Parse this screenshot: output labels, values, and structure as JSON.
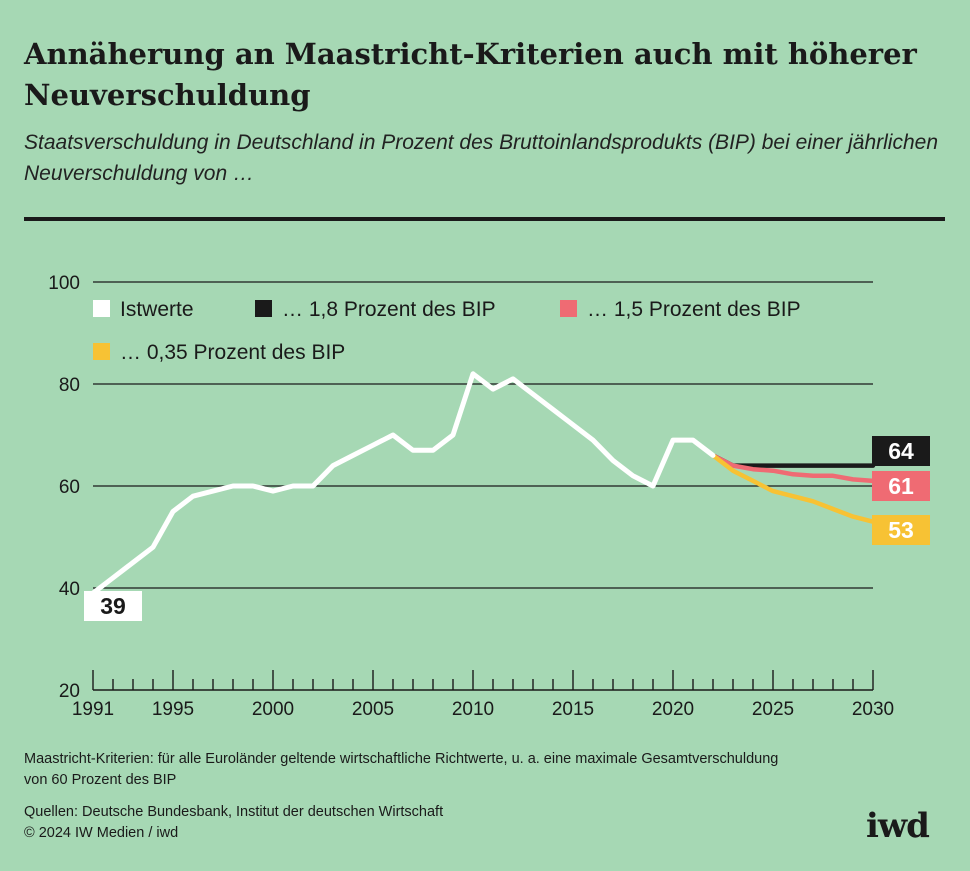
{
  "header": {
    "title": "Annäherung an Maastricht-Kriterien auch mit höherer Neuverschuldung",
    "subtitle": "Staatsverschuldung in Deutschland in Prozent des Bruttoinlandsprodukts (BIP) bei einer jährlichen Neuverschuldung von …"
  },
  "colors": {
    "background": "#a6d8b4",
    "istwerte": "#ffffff",
    "s18": "#1a1a1a",
    "s15": "#ef6b73",
    "s035": "#f7c234"
  },
  "chart_data": {
    "type": "line",
    "ylim": [
      20,
      100
    ],
    "yticks": [
      20,
      40,
      60,
      80,
      100
    ],
    "xlim": [
      1991,
      2030
    ],
    "xtick_labels": [
      1991,
      1995,
      2000,
      2005,
      2010,
      2015,
      2020,
      2025,
      2030
    ],
    "gridlines": "horizontal",
    "legend": [
      {
        "key": "istwerte",
        "label": "Istwerte"
      },
      {
        "key": "s18",
        "label": "… 1,8 Prozent des BIP"
      },
      {
        "key": "s15",
        "label": "… 1,5 Prozent des BIP"
      },
      {
        "key": "s035",
        "label": "… 0,35 Prozent des BIP"
      }
    ],
    "series": [
      {
        "key": "istwerte",
        "name": "Istwerte",
        "x": [
          1991,
          1992,
          1993,
          1994,
          1995,
          1996,
          1997,
          1998,
          1999,
          2000,
          2001,
          2002,
          2003,
          2004,
          2005,
          2006,
          2007,
          2008,
          2009,
          2010,
          2011,
          2012,
          2013,
          2014,
          2015,
          2016,
          2017,
          2018,
          2019,
          2020,
          2021,
          2022
        ],
        "values": [
          39,
          42,
          45,
          48,
          55,
          58,
          59,
          60,
          60,
          59,
          60,
          60,
          64,
          66,
          68,
          70,
          67,
          67,
          70,
          82,
          79,
          81,
          78,
          75,
          72,
          69,
          65,
          62,
          60,
          69,
          69,
          66
        ],
        "label": "39"
      },
      {
        "key": "s18",
        "name": "… 1,8 Prozent des BIP",
        "x": [
          2022,
          2023,
          2024,
          2025,
          2026,
          2027,
          2028,
          2029,
          2030
        ],
        "values": [
          66,
          64,
          64,
          64,
          64,
          64,
          64,
          64,
          64
        ],
        "label": "64"
      },
      {
        "key": "s15",
        "name": "… 1,5 Prozent des BIP",
        "x": [
          2022,
          2023,
          2024,
          2025,
          2026,
          2027,
          2028,
          2029,
          2030
        ],
        "values": [
          66,
          64,
          63.3,
          63,
          62.3,
          62,
          62,
          61.3,
          61
        ],
        "label": "61"
      },
      {
        "key": "s035",
        "name": "… 0,35 Prozent des BIP",
        "x": [
          2022,
          2023,
          2024,
          2025,
          2026,
          2027,
          2028,
          2029,
          2030
        ],
        "values": [
          66,
          63,
          61,
          59,
          58,
          57,
          55.5,
          54,
          53
        ],
        "label": "53"
      }
    ]
  },
  "footer": {
    "note": "Maastricht-Kriterien: für alle Euroländer geltende wirtschaftliche Richtwerte, u. a. eine maximale Gesamtverschuldung von 60 Prozent des BIP",
    "sources": "Quellen: Deutsche Bundesbank, Institut der deutschen Wirtschaft",
    "copyright": "© 2024 IW Medien / iwd",
    "logo": "iwd"
  }
}
